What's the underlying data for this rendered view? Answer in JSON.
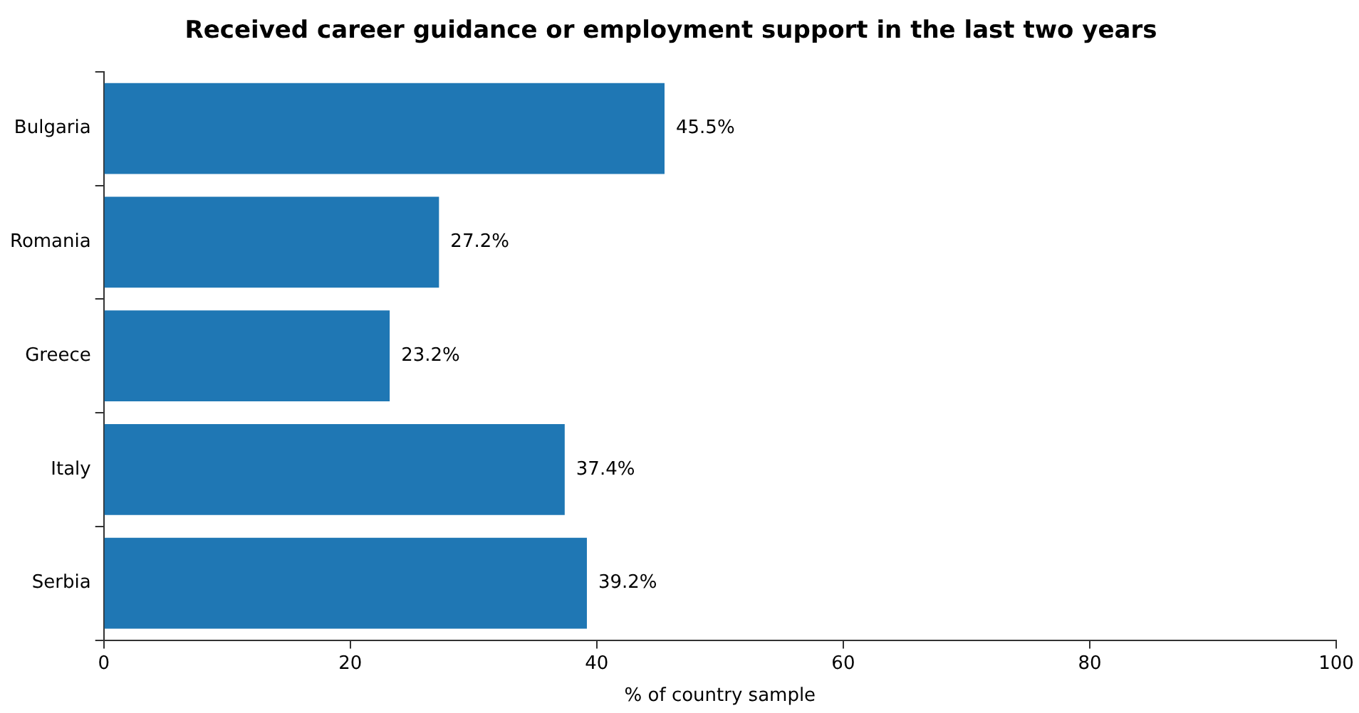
{
  "chart_data": {
    "type": "bar",
    "orientation": "horizontal",
    "title": "Received career guidance or employment support in the last two years",
    "xlabel": "% of country sample",
    "categories": [
      "Bulgaria",
      "Romania",
      "Greece",
      "Italy",
      "Serbia"
    ],
    "values": [
      45.5,
      27.2,
      23.2,
      37.4,
      39.2
    ],
    "value_labels": [
      "45.5%",
      "27.2%",
      "23.2%",
      "37.4%",
      "39.2%"
    ],
    "color": "#1f77b4",
    "xlim": [
      0,
      100
    ],
    "xticks": [
      0,
      20,
      40,
      60,
      80,
      100
    ],
    "grid": false,
    "legend": false
  }
}
